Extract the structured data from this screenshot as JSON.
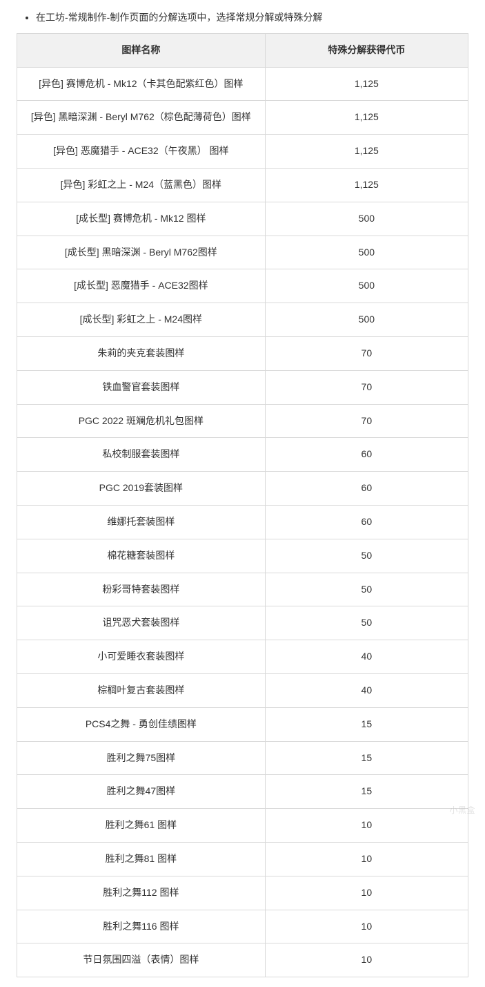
{
  "intro": {
    "bullet": "在工坊-常规制作-制作页面的分解选项中，选择常规分解或特殊分解"
  },
  "table": {
    "headers": {
      "name": "图样名称",
      "token": "特殊分解获得代币"
    },
    "rows": [
      {
        "name": "[异色] 赛博危机 - Mk12（卡其色配紫红色）图样",
        "token": "1,125"
      },
      {
        "name": "[异色] 黑暗深渊 - Beryl M762（棕色配薄荷色）图样",
        "token": "1,125"
      },
      {
        "name": "[异色] 恶魔猎手 - ACE32（午夜黑） 图样",
        "token": "1,125"
      },
      {
        "name": "[异色] 彩虹之上 - M24（蓝黑色）图样",
        "token": "1,125"
      },
      {
        "name": "[成长型] 赛博危机 - Mk12 图样",
        "token": "500"
      },
      {
        "name": "[成长型] 黑暗深渊 - Beryl M762图样",
        "token": "500"
      },
      {
        "name": "[成长型] 恶魔猎手 - ACE32图样",
        "token": "500"
      },
      {
        "name": "[成长型] 彩虹之上 - M24图样",
        "token": "500"
      },
      {
        "name": "朱莉的夹克套装图样",
        "token": "70"
      },
      {
        "name": "铁血警官套装图样",
        "token": "70"
      },
      {
        "name": "PGC 2022 斑斓危机礼包图样",
        "token": "70"
      },
      {
        "name": "私校制服套装图样",
        "token": "60"
      },
      {
        "name": "PGC 2019套装图样",
        "token": "60"
      },
      {
        "name": "维娜托套装图样",
        "token": "60"
      },
      {
        "name": "棉花糖套装图样",
        "token": "50"
      },
      {
        "name": "粉彩哥特套装图样",
        "token": "50"
      },
      {
        "name": "诅咒恶犬套装图样",
        "token": "50"
      },
      {
        "name": "小可爱睡衣套装图样",
        "token": "40"
      },
      {
        "name": "棕榈叶复古套装图样",
        "token": "40"
      },
      {
        "name": "PCS4之舞 - 勇创佳绩图样",
        "token": "15"
      },
      {
        "name": "胜利之舞75图样",
        "token": "15"
      },
      {
        "name": "胜利之舞47图样",
        "token": "15"
      },
      {
        "name": "胜利之舞61 图样",
        "token": "10"
      },
      {
        "name": "胜利之舞81 图样",
        "token": "10"
      },
      {
        "name": "胜利之舞112 图样",
        "token": "10"
      },
      {
        "name": "胜利之舞116 图样",
        "token": "10"
      },
      {
        "name": "节日氛围四溢（表情）图样",
        "token": "10"
      }
    ]
  },
  "watermark": "小黑盒"
}
